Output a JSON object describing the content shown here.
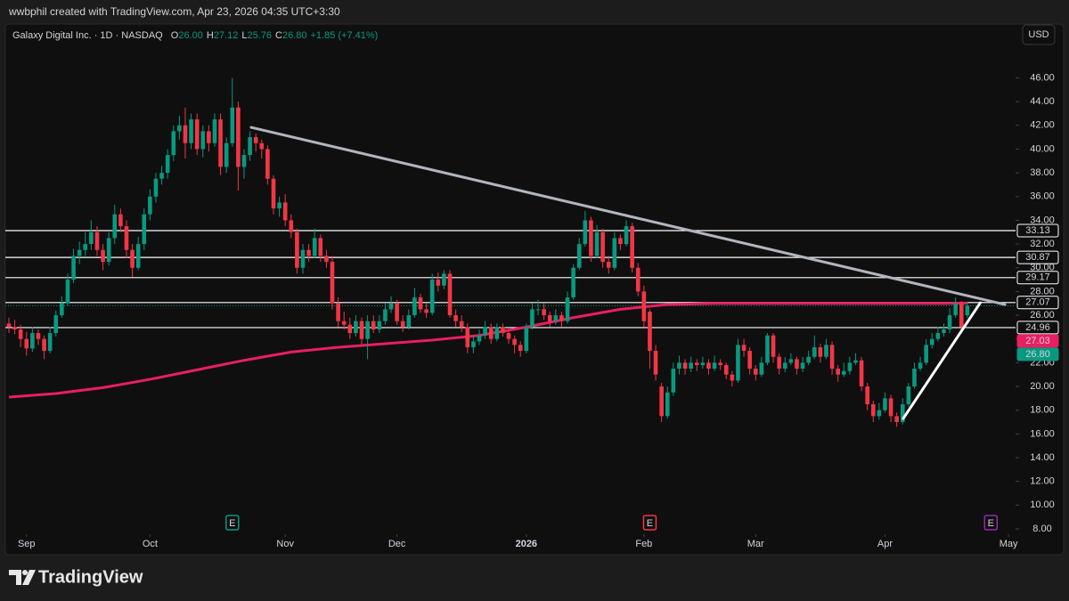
{
  "credit": "wwbphil created with TradingView.com, Apr 23, 2026 04:35 UTC+3:30",
  "brand": "TradingView",
  "chart_data": {
    "type": "candlestick",
    "title": "Galaxy Digital Inc. · 1D · NASDAQ",
    "ohlc_header": [
      {
        "key": "O",
        "value": "26.00"
      },
      {
        "key": "H",
        "value": "27.12"
      },
      {
        "key": "L",
        "value": "25.76"
      },
      {
        "key": "C",
        "value": "26.80"
      }
    ],
    "change": "+1.85 (+7.41%)",
    "currency": "USD",
    "up_color": "#089981",
    "down_color": "#f23645",
    "candles": [
      [
        25.3,
        25.8,
        24.5,
        25.0
      ],
      [
        25.0,
        25.6,
        24.4,
        24.8
      ],
      [
        24.8,
        25.2,
        23.3,
        24.0
      ],
      [
        24.0,
        24.6,
        22.6,
        23.2
      ],
      [
        23.2,
        25.0,
        22.9,
        24.5
      ],
      [
        24.5,
        24.8,
        23.5,
        24.0
      ],
      [
        24.0,
        24.3,
        22.3,
        23.0
      ],
      [
        23.0,
        25.0,
        22.8,
        24.5
      ],
      [
        24.5,
        26.4,
        24.2,
        26.0
      ],
      [
        26.0,
        27.6,
        25.8,
        27.0
      ],
      [
        27.0,
        29.5,
        26.8,
        29.0
      ],
      [
        29.0,
        31.6,
        28.7,
        31.0
      ],
      [
        31.0,
        32.2,
        30.3,
        31.5
      ],
      [
        31.5,
        33.0,
        31.0,
        32.0
      ],
      [
        32.0,
        34.0,
        31.5,
        33.0
      ],
      [
        33.0,
        33.5,
        31.0,
        31.5
      ],
      [
        31.5,
        32.0,
        29.8,
        30.5
      ],
      [
        30.5,
        33.0,
        30.2,
        32.5
      ],
      [
        32.5,
        35.3,
        32.0,
        34.5
      ],
      [
        34.5,
        35.0,
        33.0,
        33.5
      ],
      [
        33.5,
        34.0,
        30.8,
        31.5
      ],
      [
        31.5,
        32.0,
        29.2,
        30.0
      ],
      [
        30.0,
        32.6,
        29.8,
        32.0
      ],
      [
        32.0,
        35.0,
        31.5,
        34.5
      ],
      [
        34.5,
        36.6,
        34.0,
        36.0
      ],
      [
        36.0,
        38.0,
        35.5,
        37.5
      ],
      [
        37.5,
        38.6,
        37.0,
        38.0
      ],
      [
        38.0,
        40.0,
        37.5,
        39.5
      ],
      [
        39.5,
        42.0,
        39.0,
        41.5
      ],
      [
        41.5,
        42.8,
        40.8,
        42.0
      ],
      [
        42.0,
        43.5,
        39.2,
        40.5
      ],
      [
        40.5,
        43.0,
        40.0,
        42.5
      ],
      [
        42.5,
        43.0,
        39.5,
        40.0
      ],
      [
        40.0,
        42.0,
        39.3,
        41.5
      ],
      [
        41.5,
        42.0,
        39.8,
        40.5
      ],
      [
        40.5,
        43.0,
        40.2,
        42.5
      ],
      [
        42.5,
        43.0,
        37.8,
        38.5
      ],
      [
        38.5,
        41.0,
        38.0,
        40.5
      ],
      [
        40.5,
        46.0,
        40.2,
        43.5
      ],
      [
        43.5,
        44.0,
        36.5,
        38.5
      ],
      [
        38.5,
        40.0,
        37.5,
        39.5
      ],
      [
        39.5,
        41.5,
        39.0,
        41.0
      ],
      [
        41.0,
        41.3,
        39.8,
        40.5
      ],
      [
        40.5,
        40.8,
        39.2,
        40.0
      ],
      [
        40.0,
        40.3,
        37.0,
        37.5
      ],
      [
        37.5,
        37.8,
        34.5,
        35.0
      ],
      [
        35.0,
        36.0,
        34.3,
        35.5
      ],
      [
        35.5,
        36.2,
        33.5,
        34.0
      ],
      [
        34.0,
        34.5,
        32.5,
        33.0
      ],
      [
        33.0,
        33.3,
        29.5,
        30.0
      ],
      [
        30.0,
        32.0,
        29.5,
        31.5
      ],
      [
        31.5,
        32.0,
        30.5,
        31.0
      ],
      [
        31.0,
        33.3,
        30.8,
        32.5
      ],
      [
        32.5,
        32.8,
        30.5,
        31.0
      ],
      [
        31.0,
        31.5,
        30.0,
        30.5
      ],
      [
        30.5,
        31.0,
        26.5,
        27.0
      ],
      [
        27.0,
        27.5,
        25.0,
        25.5
      ],
      [
        25.5,
        26.3,
        24.8,
        25.2
      ],
      [
        25.2,
        25.8,
        24.0,
        24.5
      ],
      [
        24.5,
        26.0,
        24.2,
        25.5
      ],
      [
        25.5,
        25.8,
        23.5,
        24.0
      ],
      [
        24.0,
        26.0,
        22.3,
        25.5
      ],
      [
        25.5,
        26.0,
        24.5,
        24.8
      ],
      [
        24.8,
        26.0,
        24.5,
        25.5
      ],
      [
        25.5,
        27.0,
        25.2,
        26.5
      ],
      [
        26.5,
        27.6,
        26.2,
        27.0
      ],
      [
        27.0,
        27.3,
        25.2,
        25.5
      ],
      [
        25.5,
        26.0,
        24.6,
        25.0
      ],
      [
        25.0,
        26.5,
        24.8,
        26.0
      ],
      [
        26.0,
        28.3,
        25.8,
        27.5
      ],
      [
        27.5,
        27.8,
        26.2,
        26.5
      ],
      [
        26.5,
        27.0,
        25.8,
        26.2
      ],
      [
        26.2,
        29.5,
        26.0,
        29.0
      ],
      [
        29.0,
        29.6,
        28.0,
        28.5
      ],
      [
        28.5,
        29.8,
        28.2,
        29.5
      ],
      [
        29.5,
        29.8,
        25.8,
        26.0
      ],
      [
        26.0,
        26.5,
        25.0,
        25.5
      ],
      [
        25.5,
        26.0,
        24.6,
        25.0
      ],
      [
        25.0,
        25.3,
        22.8,
        23.3
      ],
      [
        23.3,
        24.3,
        22.8,
        23.8
      ],
      [
        23.8,
        24.8,
        23.5,
        24.3
      ],
      [
        24.3,
        25.5,
        24.0,
        25.0
      ],
      [
        25.0,
        25.3,
        23.6,
        24.0
      ],
      [
        24.0,
        25.3,
        23.8,
        25.0
      ],
      [
        25.0,
        25.3,
        24.2,
        24.5
      ],
      [
        24.5,
        24.8,
        23.6,
        24.0
      ],
      [
        24.0,
        24.3,
        22.8,
        23.5
      ],
      [
        23.5,
        23.8,
        22.5,
        23.0
      ],
      [
        23.0,
        25.3,
        22.8,
        25.0
      ],
      [
        25.0,
        27.0,
        24.8,
        26.5
      ],
      [
        26.5,
        27.3,
        26.0,
        26.5
      ],
      [
        26.5,
        27.0,
        25.6,
        26.0
      ],
      [
        26.0,
        26.3,
        25.0,
        25.5
      ],
      [
        25.5,
        26.5,
        25.2,
        26.0
      ],
      [
        26.0,
        26.3,
        25.0,
        25.5
      ],
      [
        25.5,
        28.0,
        25.3,
        27.5
      ],
      [
        27.5,
        30.3,
        27.3,
        30.0
      ],
      [
        30.0,
        32.5,
        29.8,
        32.0
      ],
      [
        32.0,
        34.8,
        31.8,
        34.0
      ],
      [
        34.0,
        34.3,
        30.5,
        31.0
      ],
      [
        31.0,
        33.6,
        30.8,
        33.0
      ],
      [
        33.0,
        33.3,
        30.0,
        30.5
      ],
      [
        30.5,
        31.0,
        29.5,
        30.0
      ],
      [
        30.0,
        33.0,
        29.8,
        32.5
      ],
      [
        32.5,
        32.8,
        31.5,
        32.0
      ],
      [
        32.0,
        34.0,
        31.8,
        33.5
      ],
      [
        33.5,
        33.8,
        29.6,
        30.0
      ],
      [
        30.0,
        30.4,
        27.6,
        28.0
      ],
      [
        28.0,
        28.5,
        25.0,
        25.5
      ],
      [
        26.3,
        26.5,
        21.5,
        23.0
      ],
      [
        23.0,
        23.5,
        20.5,
        21.0
      ],
      [
        20.0,
        20.3,
        17.0,
        17.5
      ],
      [
        17.5,
        20.0,
        17.3,
        19.5
      ],
      [
        19.5,
        22.0,
        19.2,
        21.5
      ],
      [
        21.5,
        22.6,
        21.0,
        22.0
      ],
      [
        22.0,
        22.3,
        21.0,
        21.5
      ],
      [
        21.5,
        22.5,
        21.2,
        22.0
      ],
      [
        22.0,
        22.3,
        21.3,
        21.8
      ],
      [
        21.8,
        22.5,
        21.5,
        22.0
      ],
      [
        22.0,
        22.3,
        21.0,
        21.5
      ],
      [
        21.5,
        22.6,
        21.3,
        22.0
      ],
      [
        22.0,
        22.3,
        21.4,
        21.8
      ],
      [
        21.8,
        22.0,
        20.6,
        21.0
      ],
      [
        21.0,
        21.3,
        20.0,
        20.5
      ],
      [
        20.5,
        24.0,
        20.3,
        23.5
      ],
      [
        23.5,
        24.0,
        22.5,
        23.0
      ],
      [
        23.0,
        23.3,
        21.0,
        21.5
      ],
      [
        21.5,
        21.8,
        20.5,
        21.0
      ],
      [
        21.0,
        22.5,
        20.8,
        22.0
      ],
      [
        22.0,
        24.5,
        21.8,
        24.3
      ],
      [
        24.3,
        24.5,
        22.0,
        22.5
      ],
      [
        22.5,
        22.8,
        21.0,
        21.5
      ],
      [
        21.5,
        22.5,
        21.2,
        22.0
      ],
      [
        22.0,
        22.8,
        21.8,
        22.3
      ],
      [
        22.3,
        22.5,
        21.0,
        21.5
      ],
      [
        21.5,
        22.5,
        21.2,
        22.0
      ],
      [
        22.0,
        23.0,
        21.8,
        22.5
      ],
      [
        22.5,
        24.3,
        22.3,
        23.3
      ],
      [
        23.3,
        23.6,
        22.0,
        22.5
      ],
      [
        22.5,
        24.0,
        22.3,
        23.5
      ],
      [
        23.5,
        23.8,
        21.0,
        21.5
      ],
      [
        21.5,
        21.8,
        20.4,
        21.0
      ],
      [
        21.0,
        22.0,
        20.8,
        21.3
      ],
      [
        21.3,
        22.5,
        21.0,
        22.0
      ],
      [
        22.0,
        22.8,
        21.8,
        22.2
      ],
      [
        22.2,
        22.5,
        19.6,
        20.0
      ],
      [
        20.0,
        20.3,
        18.0,
        18.5
      ],
      [
        18.5,
        18.8,
        17.0,
        17.5
      ],
      [
        17.5,
        18.6,
        17.2,
        18.0
      ],
      [
        18.0,
        19.5,
        17.8,
        19.0
      ],
      [
        19.0,
        19.3,
        17.0,
        17.5
      ],
      [
        17.5,
        17.8,
        16.6,
        17.0
      ],
      [
        17.0,
        19.0,
        16.8,
        18.5
      ],
      [
        18.5,
        20.3,
        18.3,
        20.0
      ],
      [
        20.0,
        22.0,
        19.8,
        21.5
      ],
      [
        21.5,
        22.5,
        21.3,
        22.0
      ],
      [
        22.0,
        24.0,
        21.8,
        23.5
      ],
      [
        23.5,
        24.5,
        23.2,
        24.0
      ],
      [
        24.0,
        25.0,
        23.8,
        24.5
      ],
      [
        24.5,
        25.3,
        24.2,
        24.8
      ],
      [
        24.8,
        26.6,
        24.5,
        26.0
      ],
      [
        26.0,
        27.5,
        25.8,
        27.0
      ],
      [
        27.0,
        27.2,
        24.8,
        25.0
      ],
      [
        26.0,
        27.12,
        25.76,
        26.8
      ]
    ],
    "moving_average": {
      "color": "#e91e63",
      "x": [
        0,
        8,
        16,
        24,
        32,
        40,
        48,
        56,
        64,
        72,
        80,
        88,
        96,
        104,
        112,
        120,
        128,
        136,
        144,
        152,
        160,
        163
      ],
      "values": [
        19.1,
        19.4,
        19.9,
        20.6,
        21.4,
        22.2,
        22.9,
        23.3,
        23.6,
        23.9,
        24.3,
        25.0,
        25.8,
        26.5,
        26.9,
        27.0,
        27.0,
        27.0,
        27.0,
        27.0,
        27.0,
        27.03
      ]
    },
    "levels": [
      33.13,
      30.87,
      29.17,
      27.07,
      24.96
    ],
    "price_labels": [
      {
        "value": 27.03,
        "color": "#e91e63"
      },
      {
        "value": 26.8,
        "label": "26.80",
        "color": "#089981"
      }
    ],
    "trendlines": [
      {
        "color": "#b2b5be",
        "x": [
          41.2,
          169.4
        ],
        "y": [
          41.83,
          26.9
        ]
      },
      {
        "color": "#ffffff",
        "x": [
          152.1,
          165.2
        ],
        "y": [
          17.3,
          27.05
        ]
      }
    ],
    "events": [
      {
        "label": "E",
        "x": 38,
        "color": "#089981"
      },
      {
        "label": "E",
        "x": 109,
        "color": "#f23645"
      },
      {
        "label": "E",
        "x": 167,
        "color": "#9c27b0"
      }
    ],
    "xlim": [
      -0.6,
      171.2
    ],
    "xticks": [
      {
        "value": 3,
        "label": "Sep"
      },
      {
        "value": 24,
        "label": "Oct"
      },
      {
        "value": 47,
        "label": "Nov"
      },
      {
        "value": 66,
        "label": "Dec"
      },
      {
        "value": 88,
        "label": "2026"
      },
      {
        "value": 108,
        "label": "Feb"
      },
      {
        "value": 127,
        "label": "Mar"
      },
      {
        "value": 149,
        "label": "Apr"
      },
      {
        "value": 170,
        "label": "May"
      }
    ],
    "ylim": [
      7.55,
      50.31
    ],
    "yticks": [
      {
        "value": 8,
        "label": "8.00"
      },
      {
        "value": 10,
        "label": "10.00"
      },
      {
        "value": 12,
        "label": "12.00"
      },
      {
        "value": 14,
        "label": "14.00"
      },
      {
        "value": 16,
        "label": "16.00"
      },
      {
        "value": 18,
        "label": "18.00"
      },
      {
        "value": 20,
        "label": "20.00"
      },
      {
        "value": 22,
        "label": "22.00"
      },
      {
        "value": 24,
        "label": "24.00"
      },
      {
        "value": 26,
        "label": "26.00"
      },
      {
        "value": 28,
        "label": "28.00"
      },
      {
        "value": 30,
        "label": "30.00"
      },
      {
        "value": 32,
        "label": "32.00"
      },
      {
        "value": 34,
        "label": "34.00"
      },
      {
        "value": 36,
        "label": "36.00"
      },
      {
        "value": 38,
        "label": "38.00"
      },
      {
        "value": 40,
        "label": "40.00"
      },
      {
        "value": 42,
        "label": "42.00"
      },
      {
        "value": 44,
        "label": "44.00"
      },
      {
        "value": 46,
        "label": "46.00"
      }
    ]
  }
}
